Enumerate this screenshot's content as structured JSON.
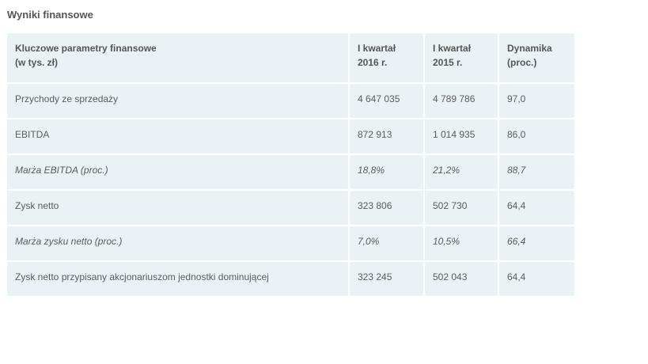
{
  "title": "Wyniki finansowe",
  "table": {
    "header": [
      {
        "line1": "Kluczowe parametry finansowe",
        "line2": "(w tys. zł)"
      },
      {
        "line1": "I kwartał",
        "line2": "2016 r."
      },
      {
        "line1": "I kwartał",
        "line2": "2015 r."
      },
      {
        "line1": "Dynamika",
        "line2": "(proc.)"
      }
    ],
    "rows": [
      {
        "label": "Przychody ze sprzedaży",
        "q2016": "4 647 035",
        "q2015": "4 789 786",
        "dyn": "97,0",
        "italic": false
      },
      {
        "label": "EBITDA",
        "q2016": "872 913",
        "q2015": "1 014 935",
        "dyn": "86,0",
        "italic": false
      },
      {
        "label": "Marża EBITDA (proc.)",
        "q2016": "18,8%",
        "q2015": "21,2%",
        "dyn": "88,7",
        "italic": true
      },
      {
        "label": "Zysk netto",
        "q2016": "323 806",
        "q2015": "502 730",
        "dyn": "64,4",
        "italic": false
      },
      {
        "label": "Marża zysku netto (proc.)",
        "q2016": "7,0%",
        "q2015": "10,5%",
        "dyn": "66,4",
        "italic": true
      },
      {
        "label": "Zysk netto przypisany akcjonariuszom jednostki dominującej",
        "q2016": "323 245",
        "q2015": "502 043",
        "dyn": "64,4",
        "italic": false
      }
    ]
  }
}
